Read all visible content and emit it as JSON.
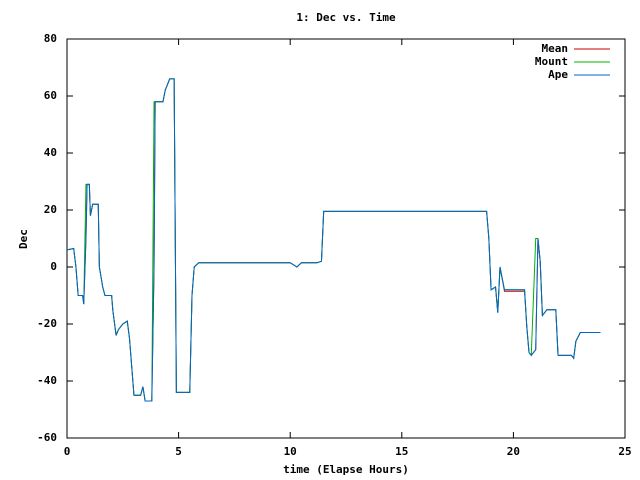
{
  "chart_data": {
    "type": "line",
    "title": "1: Dec vs. Time",
    "xlabel": "time (Elapse Hours)",
    "ylabel": "Dec",
    "x": [
      0,
      0.3,
      0.4,
      0.5,
      0.7,
      0.75,
      0.85,
      0.9,
      1.0,
      1.05,
      1.15,
      1.4,
      1.45,
      1.6,
      1.7,
      2.0,
      2.05,
      2.2,
      2.3,
      2.5,
      2.7,
      2.8,
      2.9,
      3.0,
      3.3,
      3.4,
      3.5,
      3.8,
      3.9,
      3.95,
      4.3,
      4.4,
      4.6,
      4.8,
      4.9,
      5.5,
      5.6,
      5.7,
      5.9,
      10,
      10.3,
      10.5,
      11.2,
      11.4,
      11.5,
      18.8,
      18.9,
      19.0,
      19.2,
      19.3,
      19.4,
      19.6,
      20.5,
      20.6,
      20.7,
      20.8,
      21.0,
      21.1,
      21.2,
      21.3,
      21.5,
      21.9,
      22.0,
      22.6,
      22.7,
      22.8,
      23.0,
      23.9
    ],
    "series": [
      {
        "name": "Mean",
        "color": "#cc0000",
        "values": [
          6,
          6.5,
          0,
          -10,
          -10,
          -13,
          10,
          29,
          29,
          18,
          22,
          22,
          0,
          -7,
          -10,
          -10,
          -15,
          -24,
          -22,
          -20,
          -19,
          -25,
          -35,
          -45,
          -45,
          -42,
          -47,
          -47,
          0,
          58,
          58,
          62,
          66,
          66,
          -44,
          -44,
          -10,
          0,
          1.5,
          1.5,
          0,
          1.5,
          1.5,
          2,
          19.5,
          19.5,
          10,
          -8,
          -7,
          -16,
          0,
          -8.5,
          -8.5,
          -21,
          -30,
          -31,
          -29,
          10,
          2,
          -17,
          -15,
          -15,
          -31,
          -31,
          -32,
          -26,
          -23,
          -23
        ]
      },
      {
        "name": "Mount",
        "color": "#00b000",
        "values": [
          6,
          6.5,
          0,
          -10,
          -10,
          -13,
          29,
          29,
          29,
          18,
          22,
          22,
          0,
          -7,
          -10,
          -10,
          -15,
          -24,
          -22,
          -20,
          -19,
          -25,
          -35,
          -45,
          -45,
          -42,
          -47,
          -47,
          58,
          58,
          58,
          62,
          66,
          66,
          -44,
          -44,
          -10,
          0,
          1.5,
          1.5,
          0,
          1.5,
          1.5,
          2,
          19.5,
          19.5,
          10,
          -8,
          -7,
          -16,
          0,
          -8,
          -8,
          -21,
          -30,
          -31,
          10,
          10,
          2,
          -17,
          -15,
          -15,
          -31,
          -31,
          -32,
          -26,
          -23,
          -23
        ]
      },
      {
        "name": "Ape",
        "color": "#0066cc",
        "values": [
          6,
          6.5,
          0,
          -10,
          -10,
          -13,
          10,
          29,
          29,
          18,
          22,
          22,
          0,
          -7,
          -10,
          -10,
          -15,
          -24,
          -22,
          -20,
          -19,
          -25,
          -35,
          -45,
          -45,
          -42,
          -47,
          -47,
          0,
          58,
          58,
          62,
          66,
          66,
          -44,
          -44,
          -10,
          0,
          1.5,
          1.5,
          0,
          1.5,
          1.5,
          2,
          19.5,
          19.5,
          10,
          -8,
          -7,
          -16,
          0,
          -8,
          -8,
          -21,
          -30,
          -31,
          -29,
          10,
          2,
          -17,
          -15,
          -15,
          -31,
          -31,
          -32,
          -26,
          -23,
          -23
        ]
      }
    ],
    "xlim": [
      0,
      25
    ],
    "xticks": [
      0,
      5,
      10,
      15,
      20,
      25
    ],
    "ylim": [
      -60,
      80
    ],
    "yticks": [
      -60,
      -40,
      -20,
      0,
      20,
      40,
      60,
      80
    ],
    "legend": "top-right"
  }
}
